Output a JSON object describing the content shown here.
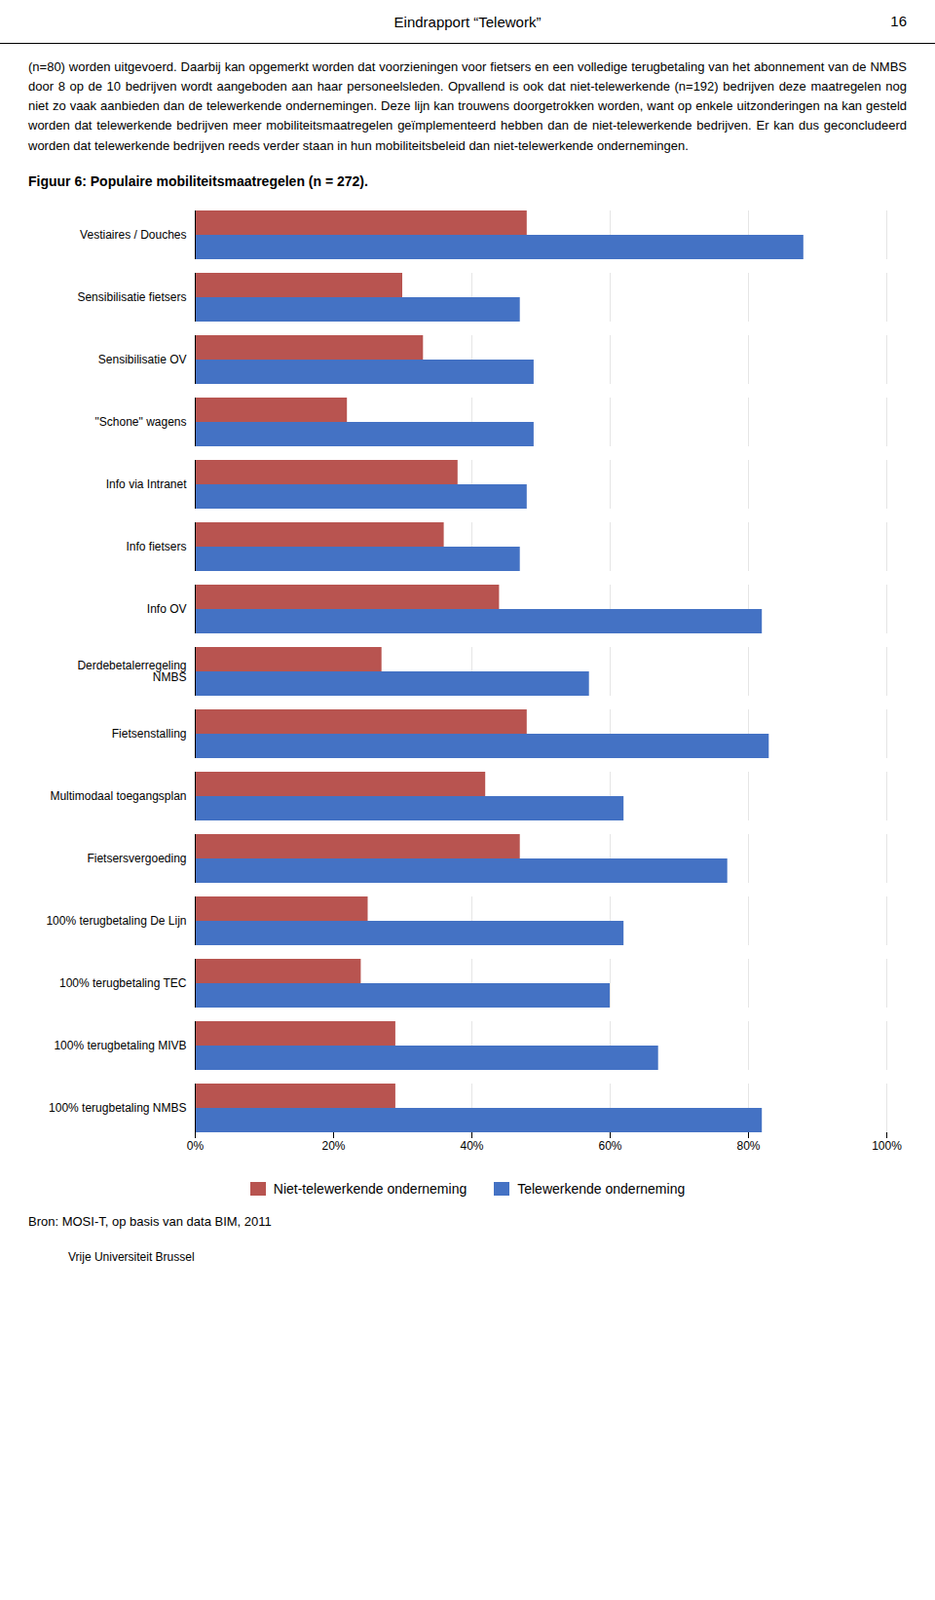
{
  "chart_data": {
    "type": "bar",
    "orientation": "horizontal",
    "title": "Figuur 6: Populaire mobiliteitsmaatregelen (n = 272).",
    "annotations": [
      "Eindrapport “Telework”",
      "16",
      "(n=80) worden uitgevoerd. Daarbij kan opgemerkt worden dat voorzieningen voor fietsers en een volledige terugbetaling van het abonnement van de NMBS door 8 op de 10 bedrijven wordt aangeboden aan haar personeelsleden. Opvallend is ook dat niet-telewerkende (n=192) bedrijven deze maatregelen nog niet zo vaak aanbieden dan de telewerkende ondernemingen. Deze lijn kan trouwens doorgetrokken worden, want op enkele uitzonderingen na kan gesteld worden dat telewerkende bedrijven meer mobiliteitsmaatregelen geïmplementeerd hebben dan de niet-telewerkende bedrijven. Er kan dus geconcludeerd worden dat telewerkende bedrijven reeds verder staan in hun mobiliteitsbeleid dan niet-telewerkende ondernemingen.",
      "Bron: MOSI-T, op basis van data BIM, 2011",
      "Vrije Universiteit Brussel"
    ],
    "categories": [
      "Vestiaires / Douches",
      "Sensibilisatie fietsers",
      "Sensibilisatie OV",
      "\"Schone\" wagens",
      "Info via Intranet",
      "Info fietsers",
      "Info OV",
      "Derdebetalerregeling\nNMBS",
      "Fietsenstalling",
      "Multimodaal toegangsplan",
      "Fietsersvergoeding",
      "100% terugbetaling De Lijn",
      "100% terugbetaling TEC",
      "100% terugbetaling MIVB",
      "100% terugbetaling NMBS"
    ],
    "series": [
      {
        "name": "Niet-telewerkende onderneming",
        "color": "#B85450",
        "values": [
          48,
          30,
          33,
          22,
          38,
          36,
          44,
          27,
          48,
          42,
          47,
          25,
          24,
          29,
          29
        ]
      },
      {
        "name": "Telewerkende onderneming",
        "color": "#4472C4",
        "values": [
          88,
          47,
          49,
          49,
          48,
          47,
          82,
          57,
          83,
          62,
          77,
          62,
          60,
          67,
          82
        ]
      }
    ],
    "xlim": [
      0,
      100
    ],
    "xticks": [
      {
        "value": 0,
        "label": "0%"
      },
      {
        "value": 20,
        "label": "20%"
      },
      {
        "value": 40,
        "label": "40%"
      },
      {
        "value": 60,
        "label": "60%"
      },
      {
        "value": 80,
        "label": "80%"
      },
      {
        "value": 100,
        "label": "100%"
      }
    ],
    "grid": true,
    "legend": "bottom"
  }
}
